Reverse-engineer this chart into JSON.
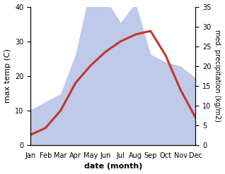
{
  "months": [
    "Jan",
    "Feb",
    "Mar",
    "Apr",
    "May",
    "Jun",
    "Jul",
    "Aug",
    "Sep",
    "Oct",
    "Nov",
    "Dec"
  ],
  "temperature": [
    3,
    5,
    10,
    18,
    23,
    27,
    30,
    32,
    33,
    26,
    16,
    8
  ],
  "precipitation": [
    9,
    11,
    13,
    23,
    40,
    37,
    31,
    36,
    23,
    21,
    20,
    17
  ],
  "temp_color": "#c0392b",
  "precip_color": "#b8c4e8",
  "temp_ylim": [
    0,
    40
  ],
  "precip_ylim": [
    0,
    35
  ],
  "temp_yticks": [
    0,
    10,
    20,
    30,
    40
  ],
  "precip_yticks": [
    0,
    5,
    10,
    15,
    20,
    25,
    30,
    35
  ],
  "xlabel": "date (month)",
  "ylabel_left": "max temp (C)",
  "ylabel_right": "med. precipitation (kg/m2)",
  "bg_color": "#ffffff",
  "line_width": 2.2,
  "label_fontsize": 8,
  "tick_fontsize": 7
}
